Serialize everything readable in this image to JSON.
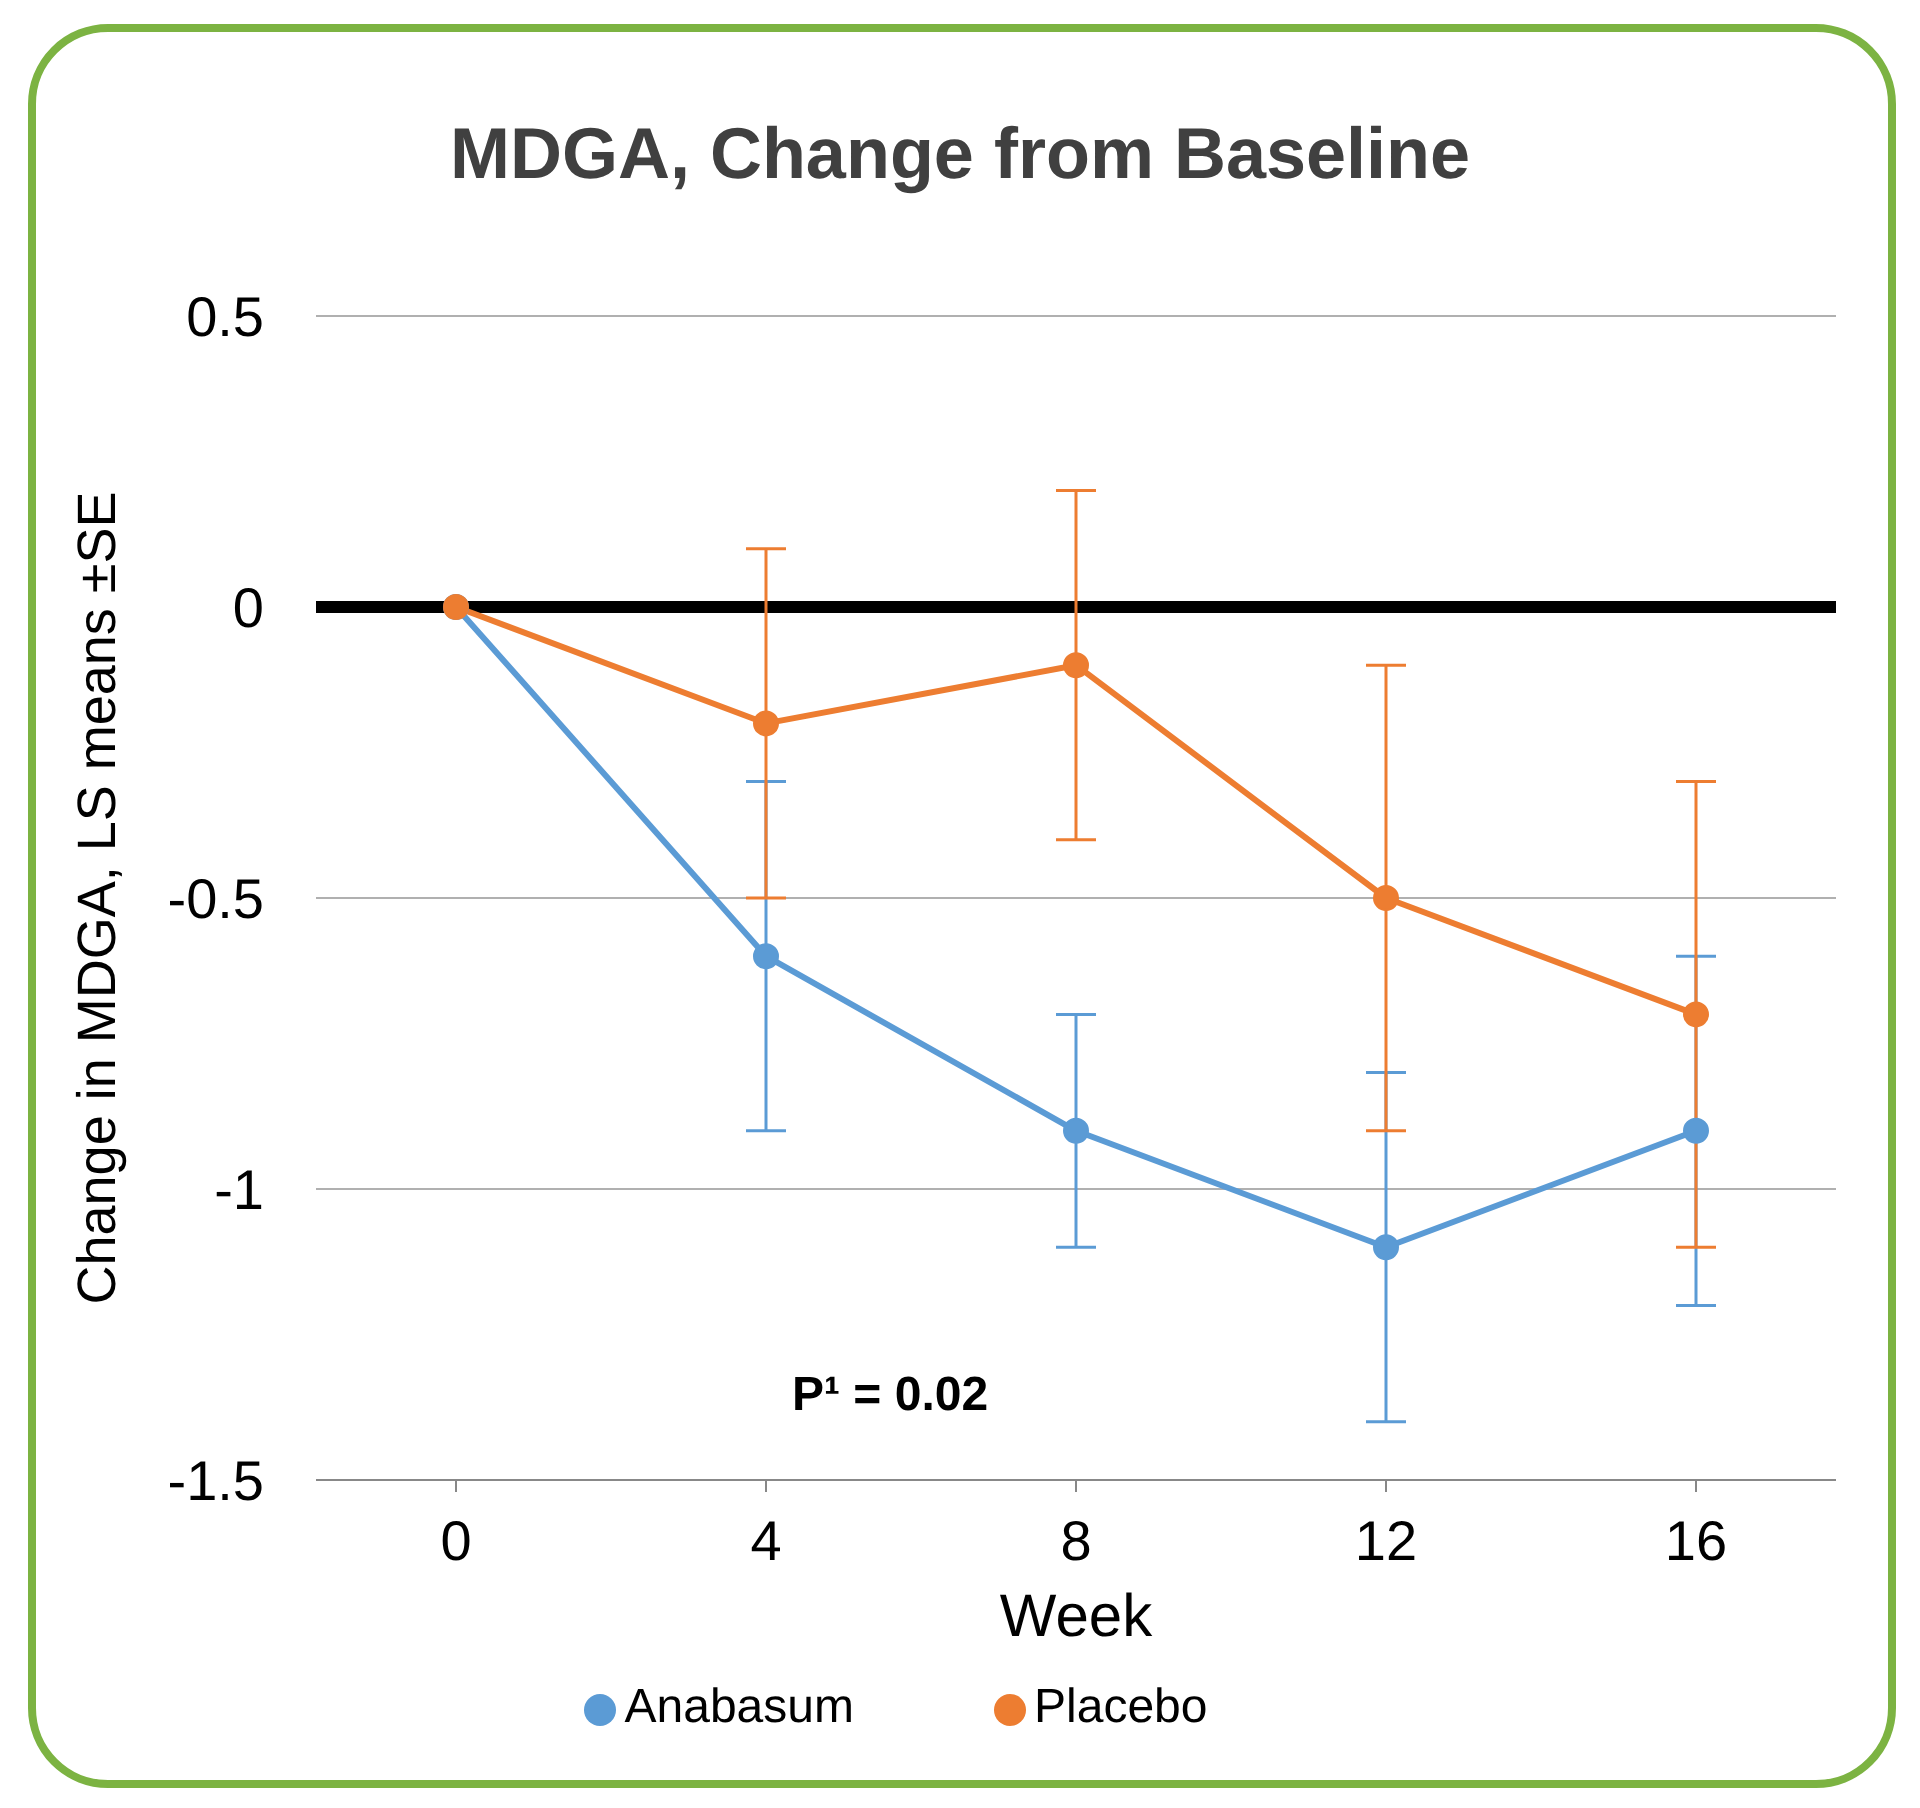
{
  "chart_data": {
    "type": "line",
    "title": "MDGA, Change from Baseline",
    "xlabel": "Week",
    "ylabel": "Change in MDGA, LS means ±SE",
    "categories": [
      "0",
      "4",
      "8",
      "12",
      "16"
    ],
    "series": [
      {
        "name": "Anabasum",
        "color": "#5b9bd5",
        "values": [
          0,
          -0.6,
          -0.9,
          -1.1,
          -0.9
        ],
        "errors": [
          null,
          0.3,
          0.2,
          0.3,
          0.3
        ]
      },
      {
        "name": "Placebo",
        "color": "#ed7d31",
        "values": [
          0,
          -0.2,
          -0.1,
          -0.5,
          -0.7
        ],
        "errors": [
          null,
          0.3,
          0.3,
          0.4,
          0.4
        ]
      }
    ],
    "ylim": [
      -1.5,
      0.5
    ],
    "yticks": [
      -1.5,
      -1,
      -0.5,
      0,
      0.5
    ],
    "grid": "y",
    "legend": "bottom",
    "marker": "circle",
    "line_style": "solid",
    "ref_lines": [
      {
        "axis": "y",
        "value": 0,
        "color": "#000000"
      }
    ],
    "annotations": [
      "P¹ = 0.02"
    ]
  }
}
